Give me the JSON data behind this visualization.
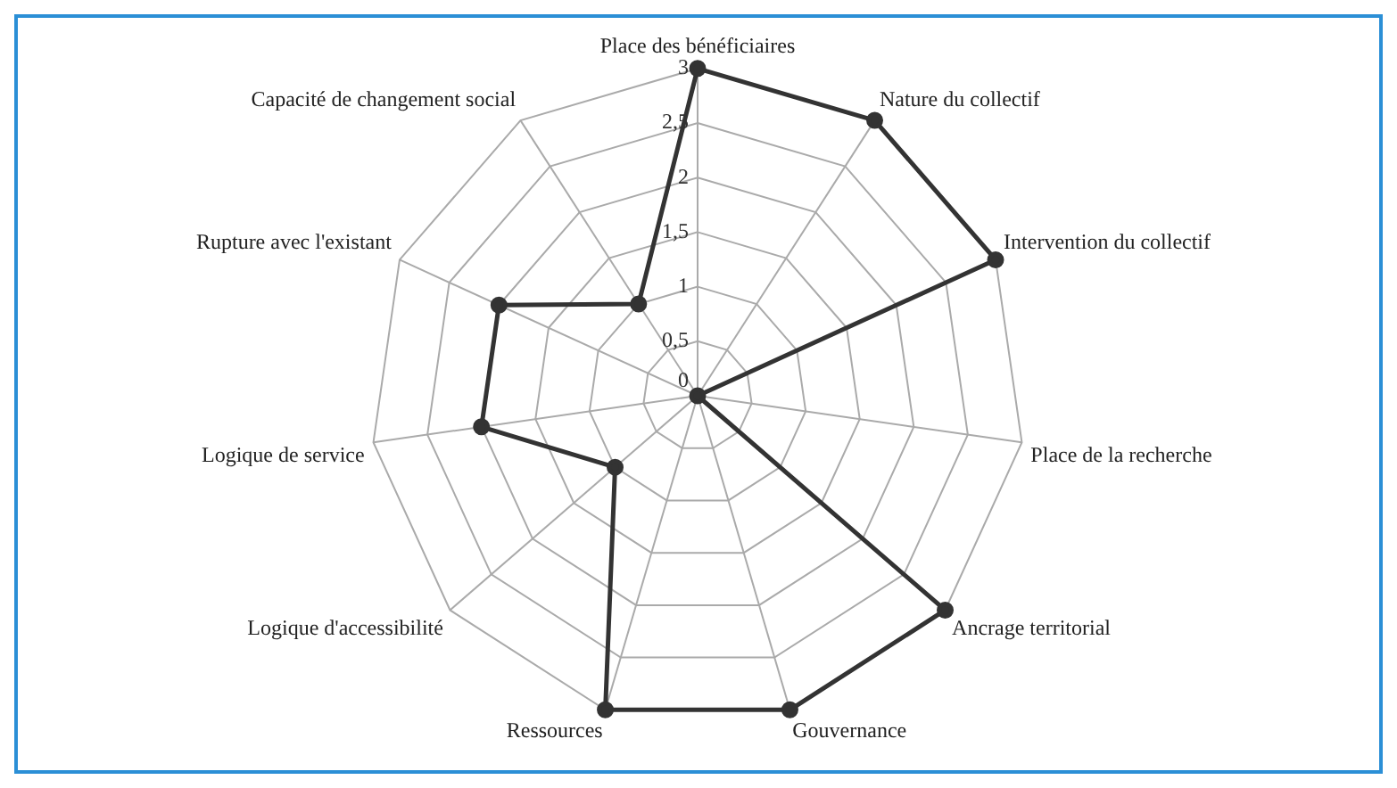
{
  "chart_data": {
    "type": "radar",
    "categories": [
      "Place des bénéficiaires",
      "Nature du collectif",
      "Intervention du collectif",
      "Place de la recherche",
      "Ancrage territorial",
      "Gouvernance",
      "Ressources",
      "Logique d'accessibilité",
      "Logique de service",
      "Rupture avec l'existant",
      "Capacité de changement social"
    ],
    "series": [
      {
        "color": "#333333",
        "values": [
          3,
          3,
          3,
          0,
          3,
          3,
          3,
          1,
          2,
          2,
          1
        ]
      }
    ],
    "ylim": [
      0,
      3
    ],
    "yticks": [
      0,
      {
        "value": 0.5,
        "label": "0,5"
      },
      1,
      {
        "value": 1.5,
        "label": "1,5"
      },
      2,
      {
        "value": 2.5,
        "label": "2,5"
      },
      3
    ],
    "grid": true,
    "legend": false,
    "marker": "circle"
  }
}
